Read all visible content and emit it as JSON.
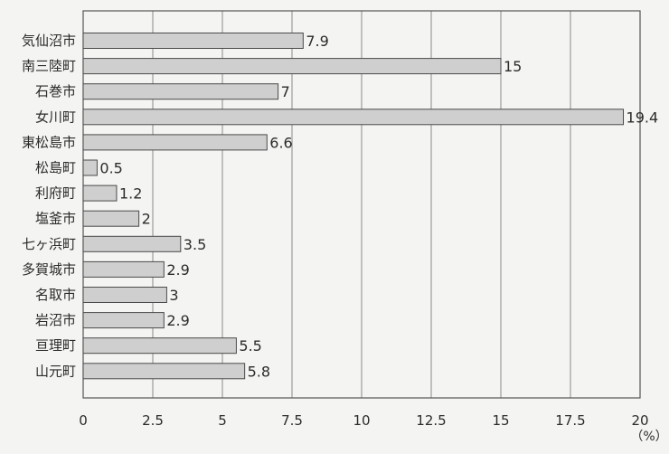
{
  "chart_data": {
    "type": "bar",
    "orientation": "horizontal",
    "categories": [
      "気仙沼市",
      "南三陸町",
      "石巻市",
      "女川町",
      "東松島市",
      "松島町",
      "利府町",
      "塩釜市",
      "七ヶ浜町",
      "多賀城市",
      "名取市",
      "岩沼市",
      "亘理町",
      "山元町"
    ],
    "values": [
      7.9,
      15,
      7,
      19.4,
      6.6,
      0.5,
      1.2,
      2,
      3.5,
      2.9,
      3,
      2.9,
      5.5,
      5.8
    ],
    "value_labels": [
      "7.9",
      "15",
      "7",
      "19.4",
      "6.6",
      "0.5",
      "1.2",
      "2",
      "3.5",
      "2.9",
      "3",
      "2.9",
      "5.5",
      "5.8"
    ],
    "xticks": [
      "0",
      "2.5",
      "5",
      "7.5",
      "10",
      "12.5",
      "15",
      "17.5",
      "20"
    ],
    "xlim": [
      0,
      20
    ],
    "unit_label": "（%）",
    "grid": true,
    "colors": {
      "bar_fill": "#cfcfcf",
      "bar_stroke": "#4a4a4a",
      "grid": "#8a8a8a",
      "frame": "#555555",
      "text": "#2b2b2b",
      "background": "#f4f4f2"
    }
  }
}
